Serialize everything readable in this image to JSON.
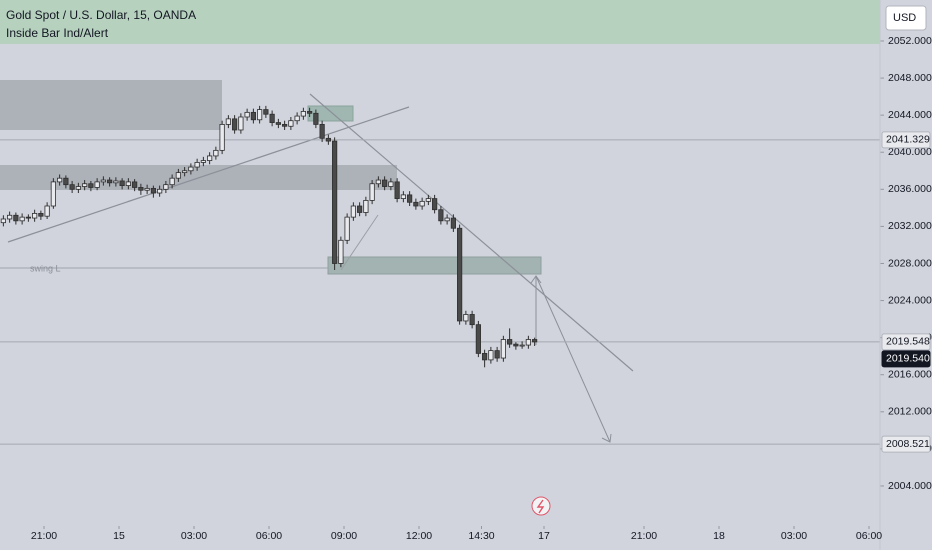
{
  "chart_data": {
    "type": "candlestick",
    "title": "Gold Spot / U.S. Dollar, 15, OANDA",
    "subtitle": "Inside Bar Ind/Alert",
    "currency": "USD",
    "annotations": [
      "swing L"
    ],
    "up_color": "#e9eaee",
    "down_color": "#4a4a4a",
    "line_color": "#2e2e2e",
    "xlim": [
      -1.76,
      33.44
    ],
    "ylim": [
      2000.33,
      2056.42
    ],
    "xticks": [
      {
        "value": 0,
        "label": "21:00"
      },
      {
        "value": 3,
        "label": "15"
      },
      {
        "value": 6,
        "label": "03:00"
      },
      {
        "value": 9,
        "label": "06:00"
      },
      {
        "value": 12,
        "label": "09:00"
      },
      {
        "value": 15,
        "label": "12:00"
      },
      {
        "value": 17.5,
        "label": "14:30"
      },
      {
        "value": 20,
        "label": "17"
      },
      {
        "value": 24,
        "label": "21:00"
      },
      {
        "value": 27,
        "label": "18"
      },
      {
        "value": 30,
        "label": "03:00"
      },
      {
        "value": 33,
        "label": "06:00"
      }
    ],
    "yticks": [
      {
        "value": 2004,
        "label": "2004.000"
      },
      {
        "value": 2008,
        "label": "2008.000"
      },
      {
        "value": 2012,
        "label": "2012.000"
      },
      {
        "value": 2016,
        "label": "2016.000"
      },
      {
        "value": 2020,
        "label": "2020.000"
      },
      {
        "value": 2024,
        "label": "2024.000"
      },
      {
        "value": 2028,
        "label": "2028.000"
      },
      {
        "value": 2032,
        "label": "2032.000"
      },
      {
        "value": 2036,
        "label": "2036.000"
      },
      {
        "value": 2040,
        "label": "2040.000"
      },
      {
        "value": 2044,
        "label": "2044.000"
      },
      {
        "value": 2048,
        "label": "2048.000"
      },
      {
        "value": 2052,
        "label": "2052.000"
      }
    ],
    "price_lines": [
      2041.329,
      2019.548,
      {
        "value": 2019.54,
        "label": "2019.540"
      },
      2008.521
    ],
    "x": [
      -1.625,
      -1.375,
      -1.125,
      -0.875,
      -0.625,
      -0.375,
      -0.125,
      0.125,
      0.375,
      0.625,
      0.875,
      1.125,
      1.375,
      1.625,
      1.875,
      2.125,
      2.375,
      2.625,
      2.875,
      3.125,
      3.375,
      3.625,
      3.875,
      4.125,
      4.375,
      4.625,
      4.875,
      5.125,
      5.375,
      5.625,
      5.875,
      6.125,
      6.375,
      6.625,
      6.875,
      7.125,
      7.375,
      7.625,
      7.875,
      8.125,
      8.375,
      8.625,
      8.875,
      9.125,
      9.375,
      9.625,
      9.875,
      10.125,
      10.375,
      10.625,
      10.875,
      11.125,
      11.375,
      11.625,
      11.875,
      12.125,
      12.375,
      12.625,
      12.875,
      13.125,
      13.375,
      13.625,
      13.875,
      14.125,
      14.375,
      14.625,
      14.875,
      15.125,
      15.375,
      15.625,
      15.875,
      16.125,
      16.375,
      16.625,
      16.875,
      17.125,
      17.375,
      17.625,
      17.875,
      18.125,
      18.375,
      18.625,
      18.875,
      19.125,
      19.375,
      19.625
    ],
    "ohlc": [
      [
        2032.4,
        2033.2,
        2032.0,
        2032.8
      ],
      [
        2032.8,
        2033.6,
        2032.4,
        2033.2
      ],
      [
        2033.2,
        2033.5,
        2032.2,
        2032.6
      ],
      [
        2032.6,
        2033.4,
        2032.2,
        2033.0
      ],
      [
        2033.0,
        2033.3,
        2032.5,
        2032.9
      ],
      [
        2032.9,
        2033.8,
        2032.5,
        2033.4
      ],
      [
        2033.4,
        2033.7,
        2032.7,
        2033.1
      ],
      [
        2033.1,
        2034.6,
        2032.8,
        2034.2
      ],
      [
        2034.2,
        2037.2,
        2033.9,
        2036.8
      ],
      [
        2036.8,
        2037.6,
        2036.4,
        2037.2
      ],
      [
        2037.2,
        2037.5,
        2036.1,
        2036.5
      ],
      [
        2036.5,
        2036.9,
        2035.6,
        2036.0
      ],
      [
        2036.0,
        2036.7,
        2035.6,
        2036.3
      ],
      [
        2036.3,
        2037.0,
        2035.9,
        2036.6
      ],
      [
        2036.6,
        2036.9,
        2035.8,
        2036.2
      ],
      [
        2036.2,
        2037.2,
        2035.9,
        2036.8
      ],
      [
        2036.8,
        2037.4,
        2036.4,
        2037.0
      ],
      [
        2037.0,
        2037.3,
        2036.3,
        2036.7
      ],
      [
        2036.7,
        2037.3,
        2036.3,
        2036.9
      ],
      [
        2036.9,
        2037.2,
        2036.0,
        2036.4
      ],
      [
        2036.4,
        2037.2,
        2036.0,
        2036.8
      ],
      [
        2036.8,
        2037.1,
        2035.8,
        2036.2
      ],
      [
        2036.2,
        2036.6,
        2035.4,
        2035.9
      ],
      [
        2035.9,
        2036.5,
        2035.5,
        2036.1
      ],
      [
        2036.1,
        2036.4,
        2035.1,
        2035.6
      ],
      [
        2035.6,
        2036.4,
        2035.2,
        2036.0
      ],
      [
        2036.0,
        2036.9,
        2035.6,
        2036.5
      ],
      [
        2036.5,
        2037.6,
        2036.1,
        2037.2
      ],
      [
        2037.2,
        2038.2,
        2036.8,
        2037.8
      ],
      [
        2037.8,
        2038.4,
        2037.4,
        2038.0
      ],
      [
        2038.0,
        2038.8,
        2037.6,
        2038.4
      ],
      [
        2038.4,
        2039.3,
        2038.0,
        2038.9
      ],
      [
        2038.9,
        2039.5,
        2038.5,
        2039.1
      ],
      [
        2039.1,
        2040.0,
        2038.7,
        2039.6
      ],
      [
        2039.6,
        2040.6,
        2039.2,
        2040.2
      ],
      [
        2040.2,
        2043.4,
        2039.8,
        2043.0
      ],
      [
        2043.0,
        2044.0,
        2042.6,
        2043.6
      ],
      [
        2043.6,
        2044.0,
        2042.0,
        2042.4
      ],
      [
        2042.4,
        2044.2,
        2042.0,
        2043.8
      ],
      [
        2043.8,
        2044.7,
        2043.4,
        2044.3
      ],
      [
        2044.3,
        2044.7,
        2043.1,
        2043.5
      ],
      [
        2043.5,
        2045.0,
        2043.1,
        2044.6
      ],
      [
        2044.6,
        2045.0,
        2043.7,
        2044.1
      ],
      [
        2044.1,
        2044.5,
        2042.8,
        2043.2
      ],
      [
        2043.2,
        2043.6,
        2042.6,
        2043.0
      ],
      [
        2043.0,
        2043.4,
        2042.4,
        2042.8
      ],
      [
        2042.8,
        2043.8,
        2042.4,
        2043.4
      ],
      [
        2043.4,
        2044.3,
        2043.0,
        2043.9
      ],
      [
        2043.9,
        2044.8,
        2043.5,
        2044.4
      ],
      [
        2044.4,
        2044.8,
        2043.8,
        2044.2
      ],
      [
        2044.2,
        2044.6,
        2042.6,
        2043.0
      ],
      [
        2043.0,
        2043.4,
        2041.1,
        2041.5
      ],
      [
        2041.5,
        2041.9,
        2040.8,
        2041.2
      ],
      [
        2041.2,
        2041.6,
        2027.3,
        2028.0
      ],
      [
        2028.0,
        2030.9,
        2027.6,
        2030.5
      ],
      [
        2030.5,
        2033.4,
        2030.1,
        2033.0
      ],
      [
        2033.0,
        2034.6,
        2032.6,
        2034.2
      ],
      [
        2034.2,
        2034.6,
        2033.1,
        2033.5
      ],
      [
        2033.5,
        2035.2,
        2033.1,
        2034.8
      ],
      [
        2034.8,
        2037.0,
        2034.4,
        2036.6
      ],
      [
        2036.6,
        2037.4,
        2036.2,
        2037.0
      ],
      [
        2037.0,
        2037.4,
        2035.9,
        2036.3
      ],
      [
        2036.3,
        2037.2,
        2035.9,
        2036.8
      ],
      [
        2036.8,
        2037.2,
        2034.6,
        2035.0
      ],
      [
        2035.0,
        2035.8,
        2034.6,
        2035.4
      ],
      [
        2035.4,
        2035.8,
        2034.2,
        2034.6
      ],
      [
        2034.6,
        2035.0,
        2033.8,
        2034.2
      ],
      [
        2034.2,
        2035.1,
        2033.8,
        2034.7
      ],
      [
        2034.7,
        2035.4,
        2034.3,
        2035.0
      ],
      [
        2035.0,
        2035.4,
        2033.4,
        2033.8
      ],
      [
        2033.8,
        2034.2,
        2032.2,
        2032.6
      ],
      [
        2032.6,
        2033.3,
        2032.2,
        2032.9
      ],
      [
        2032.9,
        2033.3,
        2031.4,
        2031.8
      ],
      [
        2031.8,
        2032.2,
        2021.4,
        2021.8
      ],
      [
        2021.8,
        2022.9,
        2021.4,
        2022.5
      ],
      [
        2022.5,
        2022.9,
        2021.0,
        2021.4
      ],
      [
        2021.4,
        2021.8,
        2017.9,
        2018.3
      ],
      [
        2018.3,
        2018.7,
        2016.8,
        2017.6
      ],
      [
        2017.6,
        2019.0,
        2017.2,
        2018.6
      ],
      [
        2018.6,
        2019.0,
        2017.4,
        2017.8
      ],
      [
        2017.8,
        2020.2,
        2017.4,
        2019.8
      ],
      [
        2019.8,
        2021.0,
        2018.9,
        2019.3
      ],
      [
        2019.3,
        2019.5,
        2018.7,
        2019.1
      ],
      [
        2019.1,
        2019.6,
        2018.8,
        2019.2
      ],
      [
        2019.2,
        2020.2,
        2018.8,
        2019.8
      ],
      [
        2019.8,
        2020.0,
        2019.1,
        2019.54
      ]
    ]
  }
}
